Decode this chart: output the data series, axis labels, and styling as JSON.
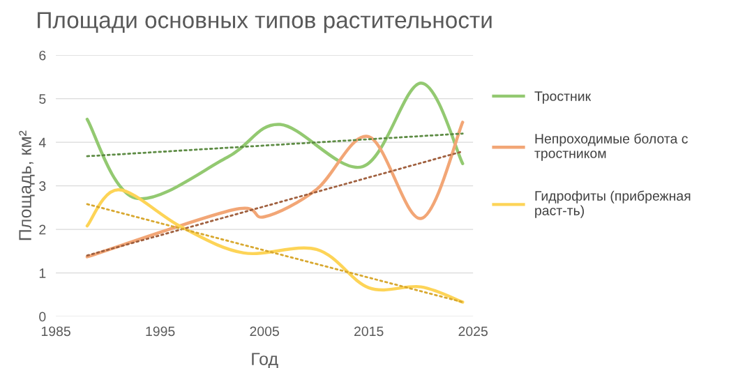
{
  "chart_data": {
    "type": "line",
    "title": "Площади основных типов растительности",
    "xlabel": "Год",
    "ylabel": "Площадь, км²",
    "xlim": [
      1985,
      2025
    ],
    "xticks": [
      1985,
      1995,
      2005,
      2015,
      2025
    ],
    "ylim": [
      0,
      6
    ],
    "yticks": [
      0,
      1,
      2,
      3,
      4,
      5,
      6
    ],
    "grid": "y",
    "legend": "right",
    "marker": "none",
    "series": [
      {
        "name": "Тростник",
        "color": "#93c971",
        "line_style": "solid",
        "x": [
          1988,
          1992.6,
          2001.4,
          2006.5,
          2014.4,
          2020,
          2024
        ],
        "values": [
          4.53,
          2.72,
          3.65,
          4.41,
          3.44,
          5.36,
          3.51
        ]
      },
      {
        "name": "Непроходимые болота с\nтростником",
        "color": "#f2a676",
        "line_style": "solid",
        "x": [
          1988,
          2002,
          2005,
          2010,
          2015,
          2020,
          2024
        ],
        "values": [
          1.37,
          2.45,
          2.29,
          2.92,
          4.13,
          2.25,
          4.46
        ]
      },
      {
        "name": "Гидрофиты (прибрежная\nраст-ть)",
        "color": "#fdd457",
        "line_style": "solid",
        "x": [
          1988,
          1991,
          1997,
          2003,
          2010,
          2015,
          2020,
          2024
        ],
        "values": [
          2.08,
          2.91,
          2.06,
          1.46,
          1.54,
          0.66,
          0.68,
          0.33
        ]
      },
      {
        "type": "line",
        "color": "#5e8c45",
        "line_style": "dotted",
        "x": [
          1988,
          2024
        ],
        "values": [
          3.68,
          4.2
        ]
      },
      {
        "type": "line",
        "color": "#a0603f",
        "line_style": "dotted",
        "x": [
          1988,
          2024
        ],
        "values": [
          1.4,
          3.79
        ]
      },
      {
        "type": "line",
        "color": "#d8a830",
        "line_style": "dotted",
        "x": [
          1988,
          2024
        ],
        "values": [
          2.58,
          0.33
        ]
      }
    ]
  }
}
